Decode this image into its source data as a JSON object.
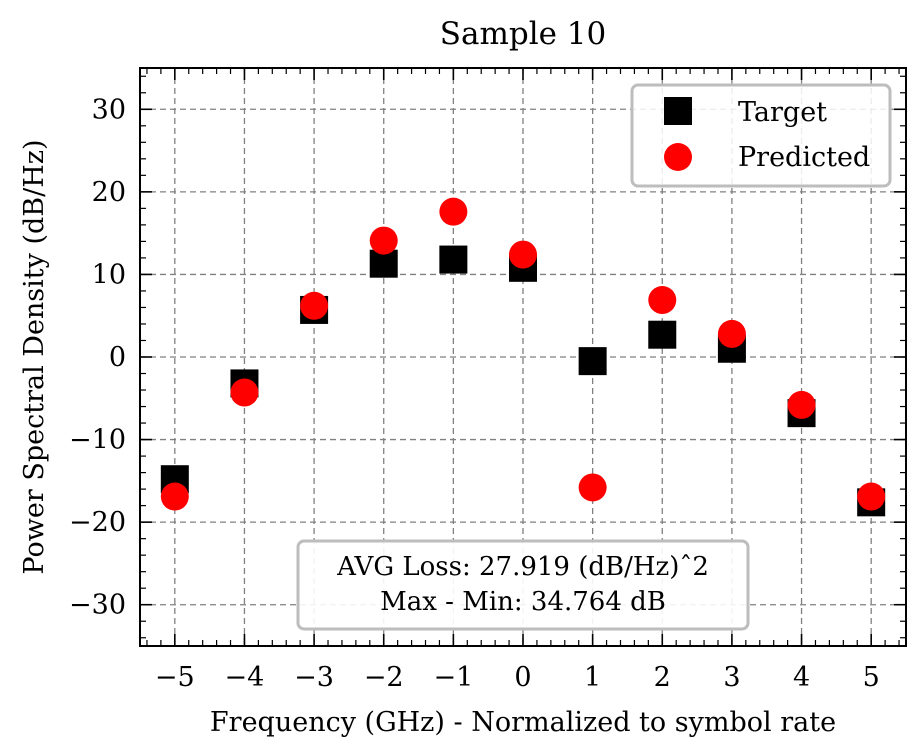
{
  "chart_data": {
    "type": "scatter",
    "title": "Sample 10",
    "xlabel": "Frequency (GHz) - Normalized to symbol rate",
    "ylabel": "Power Spectral Density (dB/Hz)",
    "xlim": [
      -5.5,
      5.5
    ],
    "ylim": [
      -35,
      35
    ],
    "x_ticks": [
      -5,
      -4,
      -3,
      -2,
      -1,
      0,
      1,
      2,
      3,
      4,
      5
    ],
    "x_tick_labels": [
      "−5",
      "−4",
      "−3",
      "−2",
      "−1",
      "0",
      "1",
      "2",
      "3",
      "4",
      "5"
    ],
    "y_ticks": [
      -30,
      -20,
      -10,
      0,
      10,
      20,
      30
    ],
    "y_tick_labels": [
      "−30",
      "−20",
      "−10",
      "0",
      "10",
      "20",
      "30"
    ],
    "grid": true,
    "legend_position": "top-right",
    "series": [
      {
        "name": "Target",
        "marker": "square",
        "color": "#000000",
        "x": [
          -5,
          -4,
          -3,
          -2,
          -1,
          0,
          1,
          2,
          3,
          4,
          5
        ],
        "y": [
          -14.8,
          -3.2,
          5.7,
          11.3,
          11.8,
          10.8,
          -0.5,
          2.7,
          1.0,
          -6.8,
          -17.6
        ]
      },
      {
        "name": "Predicted",
        "marker": "circle",
        "color": "#ff0000",
        "x": [
          -5,
          -4,
          -3,
          -2,
          -1,
          0,
          1,
          2,
          3,
          4,
          5
        ],
        "y": [
          -16.9,
          -4.3,
          6.2,
          14.1,
          17.6,
          12.4,
          -15.8,
          6.9,
          2.8,
          -5.8,
          -16.9
        ]
      }
    ],
    "annotations": {
      "line1": "AVG Loss: 27.919 (dB/Hz)ˆ2",
      "line2": "Max - Min: 34.764 dB"
    }
  }
}
